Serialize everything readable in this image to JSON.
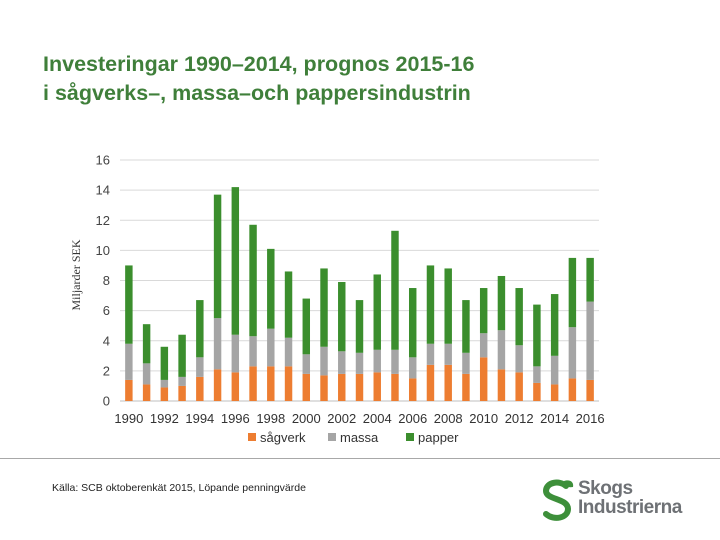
{
  "slide": {
    "title_line1": "Investeringar 1990–2014, prognos 2015-16",
    "title_line2": "i sågverks–, massa–och pappersindustrin",
    "source": "Källa: SCB oktoberenkät 2015,  Löpande penningvärde"
  },
  "logo": {
    "line1": "Skogs",
    "line2": "Industrierna",
    "icon": "s-leaf-logo-icon",
    "colors": {
      "green": "#3d8f3a",
      "gray": "#6e7175"
    }
  },
  "chart_data": {
    "type": "bar",
    "stacked": true,
    "ylabel": "Miljarder SEK",
    "ylim": [
      0,
      16
    ],
    "yticks": [
      0,
      2,
      4,
      6,
      8,
      10,
      12,
      14,
      16
    ],
    "grid": true,
    "legend_position": "bottom",
    "categories": [
      "1990",
      "1991",
      "1992",
      "1993",
      "1994",
      "1995",
      "1996",
      "1997",
      "1998",
      "1999",
      "2000",
      "2001",
      "2002",
      "2003",
      "2004",
      "2005",
      "2006",
      "2007",
      "2008",
      "2009",
      "2010",
      "2011",
      "2012",
      "2013",
      "2014",
      "2015",
      "2016"
    ],
    "x_tick_labels": [
      "1990",
      "1992",
      "1994",
      "1996",
      "1998",
      "2000",
      "2002",
      "2004",
      "2006",
      "2008",
      "2010",
      "2012",
      "2014",
      "2016"
    ],
    "series": [
      {
        "name": "sågverk",
        "color": "#ed7d31",
        "values": [
          1.4,
          1.1,
          0.9,
          1.0,
          1.6,
          2.1,
          1.9,
          2.3,
          2.3,
          2.3,
          1.8,
          1.7,
          1.8,
          1.8,
          1.9,
          1.8,
          1.5,
          2.4,
          2.4,
          1.8,
          2.9,
          2.1,
          1.9,
          1.2,
          1.1,
          1.5,
          1.4
        ]
      },
      {
        "name": "massa",
        "color": "#a5a5a5",
        "values": [
          2.4,
          1.4,
          0.5,
          0.6,
          1.3,
          3.4,
          2.5,
          2.0,
          2.5,
          1.9,
          1.3,
          1.9,
          1.5,
          1.4,
          1.5,
          1.6,
          1.4,
          1.4,
          1.4,
          1.4,
          1.6,
          2.6,
          1.8,
          1.1,
          1.9,
          3.4,
          5.2
        ]
      },
      {
        "name": "papper",
        "color": "#3b8e2d",
        "values": [
          5.2,
          2.6,
          2.2,
          2.8,
          3.8,
          8.2,
          9.8,
          7.4,
          5.3,
          4.4,
          3.7,
          5.2,
          4.6,
          3.5,
          5.0,
          7.9,
          4.6,
          5.2,
          5.0,
          3.5,
          3.0,
          3.6,
          3.8,
          4.1,
          4.1,
          4.6,
          2.9
        ]
      }
    ]
  }
}
